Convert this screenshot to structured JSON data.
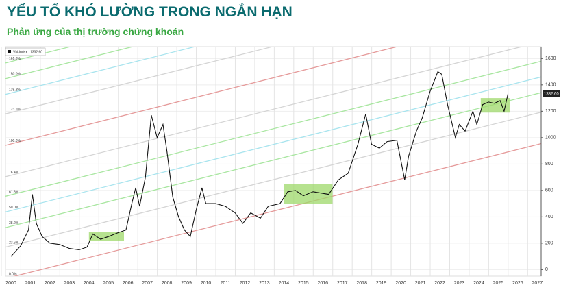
{
  "chart_data": {
    "type": "line",
    "title": "YẾU TỐ KHÓ LƯỜNG TRONG NGẮN HẠN",
    "subtitle": "Phản ứng của thị trường chứng khoán",
    "series": [
      {
        "name": "VN-Index",
        "color": "#111111",
        "x": [
          2000.0,
          2000.5,
          2000.9,
          2001.1,
          2001.3,
          2001.6,
          2002.0,
          2002.5,
          2003.0,
          2003.5,
          2003.9,
          2004.2,
          2004.6,
          2005.0,
          2005.5,
          2005.9,
          2006.2,
          2006.4,
          2006.6,
          2006.9,
          2007.2,
          2007.5,
          2007.8,
          2008.0,
          2008.3,
          2008.6,
          2008.9,
          2009.2,
          2009.5,
          2009.8,
          2010.0,
          2010.5,
          2011.0,
          2011.5,
          2011.9,
          2012.3,
          2012.8,
          2013.2,
          2013.8,
          2014.2,
          2014.6,
          2015.0,
          2015.5,
          2015.9,
          2016.3,
          2016.8,
          2017.3,
          2017.8,
          2018.2,
          2018.5,
          2018.9,
          2019.3,
          2019.8,
          2020.2,
          2020.4,
          2020.8,
          2021.1,
          2021.5,
          2021.9,
          2022.1,
          2022.4,
          2022.8,
          2023.0,
          2023.3,
          2023.7,
          2023.9,
          2024.2,
          2024.5,
          2024.8,
          2025.1,
          2025.3,
          2025.5
        ],
        "values": [
          100,
          180,
          300,
          570,
          350,
          250,
          200,
          190,
          160,
          150,
          170,
          270,
          230,
          250,
          280,
          300,
          500,
          620,
          480,
          700,
          1170,
          1000,
          1100,
          900,
          550,
          400,
          300,
          250,
          450,
          620,
          500,
          500,
          480,
          430,
          350,
          430,
          390,
          480,
          500,
          590,
          600,
          560,
          590,
          580,
          570,
          680,
          730,
          950,
          1180,
          950,
          920,
          970,
          980,
          680,
          860,
          1050,
          1150,
          1350,
          1500,
          1480,
          1250,
          1000,
          1100,
          1050,
          1200,
          1100,
          1250,
          1270,
          1260,
          1280,
          1200,
          1332.6
        ]
      }
    ],
    "last_value": 1332.6,
    "last_value_label": "1332.60",
    "channel_lines": [
      {
        "label": "0.0%",
        "start": -68,
        "end": 955,
        "color": "#e59a9a"
      },
      {
        "label": "23.6%",
        "start": 170,
        "end": 1193,
        "color": "#d4d4d4"
      },
      {
        "label": "38.2%",
        "start": 318,
        "end": 1341,
        "color": "#a8e6a0"
      },
      {
        "label": "50.0%",
        "start": 437,
        "end": 1460,
        "color": "#a8e4ee"
      },
      {
        "label": "61.8%",
        "start": 556,
        "end": 1579,
        "color": "#a8e6a0"
      },
      {
        "label": "76.4%",
        "start": 704,
        "end": 1727,
        "color": "#d4d4d4"
      },
      {
        "label": "100.0%",
        "start": 942,
        "end": 1965,
        "color": "#e59a9a"
      },
      {
        "label": "123.6%",
        "start": 1180,
        "end": 2203,
        "color": "#d4d4d4"
      },
      {
        "label": "138.2%",
        "start": 1328,
        "end": 2351,
        "color": "#a8e4ee"
      },
      {
        "label": "150.0%",
        "start": 1447,
        "end": 2470,
        "color": "#a8e6a0"
      },
      {
        "label": "161.8%",
        "start": 1566,
        "end": 2589,
        "color": "#a8e6a0"
      }
    ],
    "highlight_boxes": [
      {
        "x0": 2004.0,
        "x1": 2005.8,
        "y0": 215,
        "y1": 285
      },
      {
        "x0": 2014.0,
        "x1": 2016.5,
        "y0": 500,
        "y1": 650
      },
      {
        "x0": 2024.1,
        "x1": 2025.6,
        "y0": 1190,
        "y1": 1300
      }
    ],
    "highlight_color": "#9ed86a",
    "xlim": [
      1999.72,
      2027.2
    ],
    "xticks": [
      2000,
      2001,
      2002,
      2003,
      2004,
      2005,
      2006,
      2007,
      2008,
      2009,
      2010,
      2011,
      2012,
      2013,
      2014,
      2015,
      2016,
      2017,
      2018,
      2019,
      2020,
      2021,
      2022,
      2023,
      2024,
      2025,
      2026,
      2027
    ],
    "ylim": [
      -50,
      1690
    ],
    "yticks": [
      0,
      200,
      400,
      600,
      800,
      1000,
      1200,
      1400,
      1600
    ],
    "grid": true
  }
}
